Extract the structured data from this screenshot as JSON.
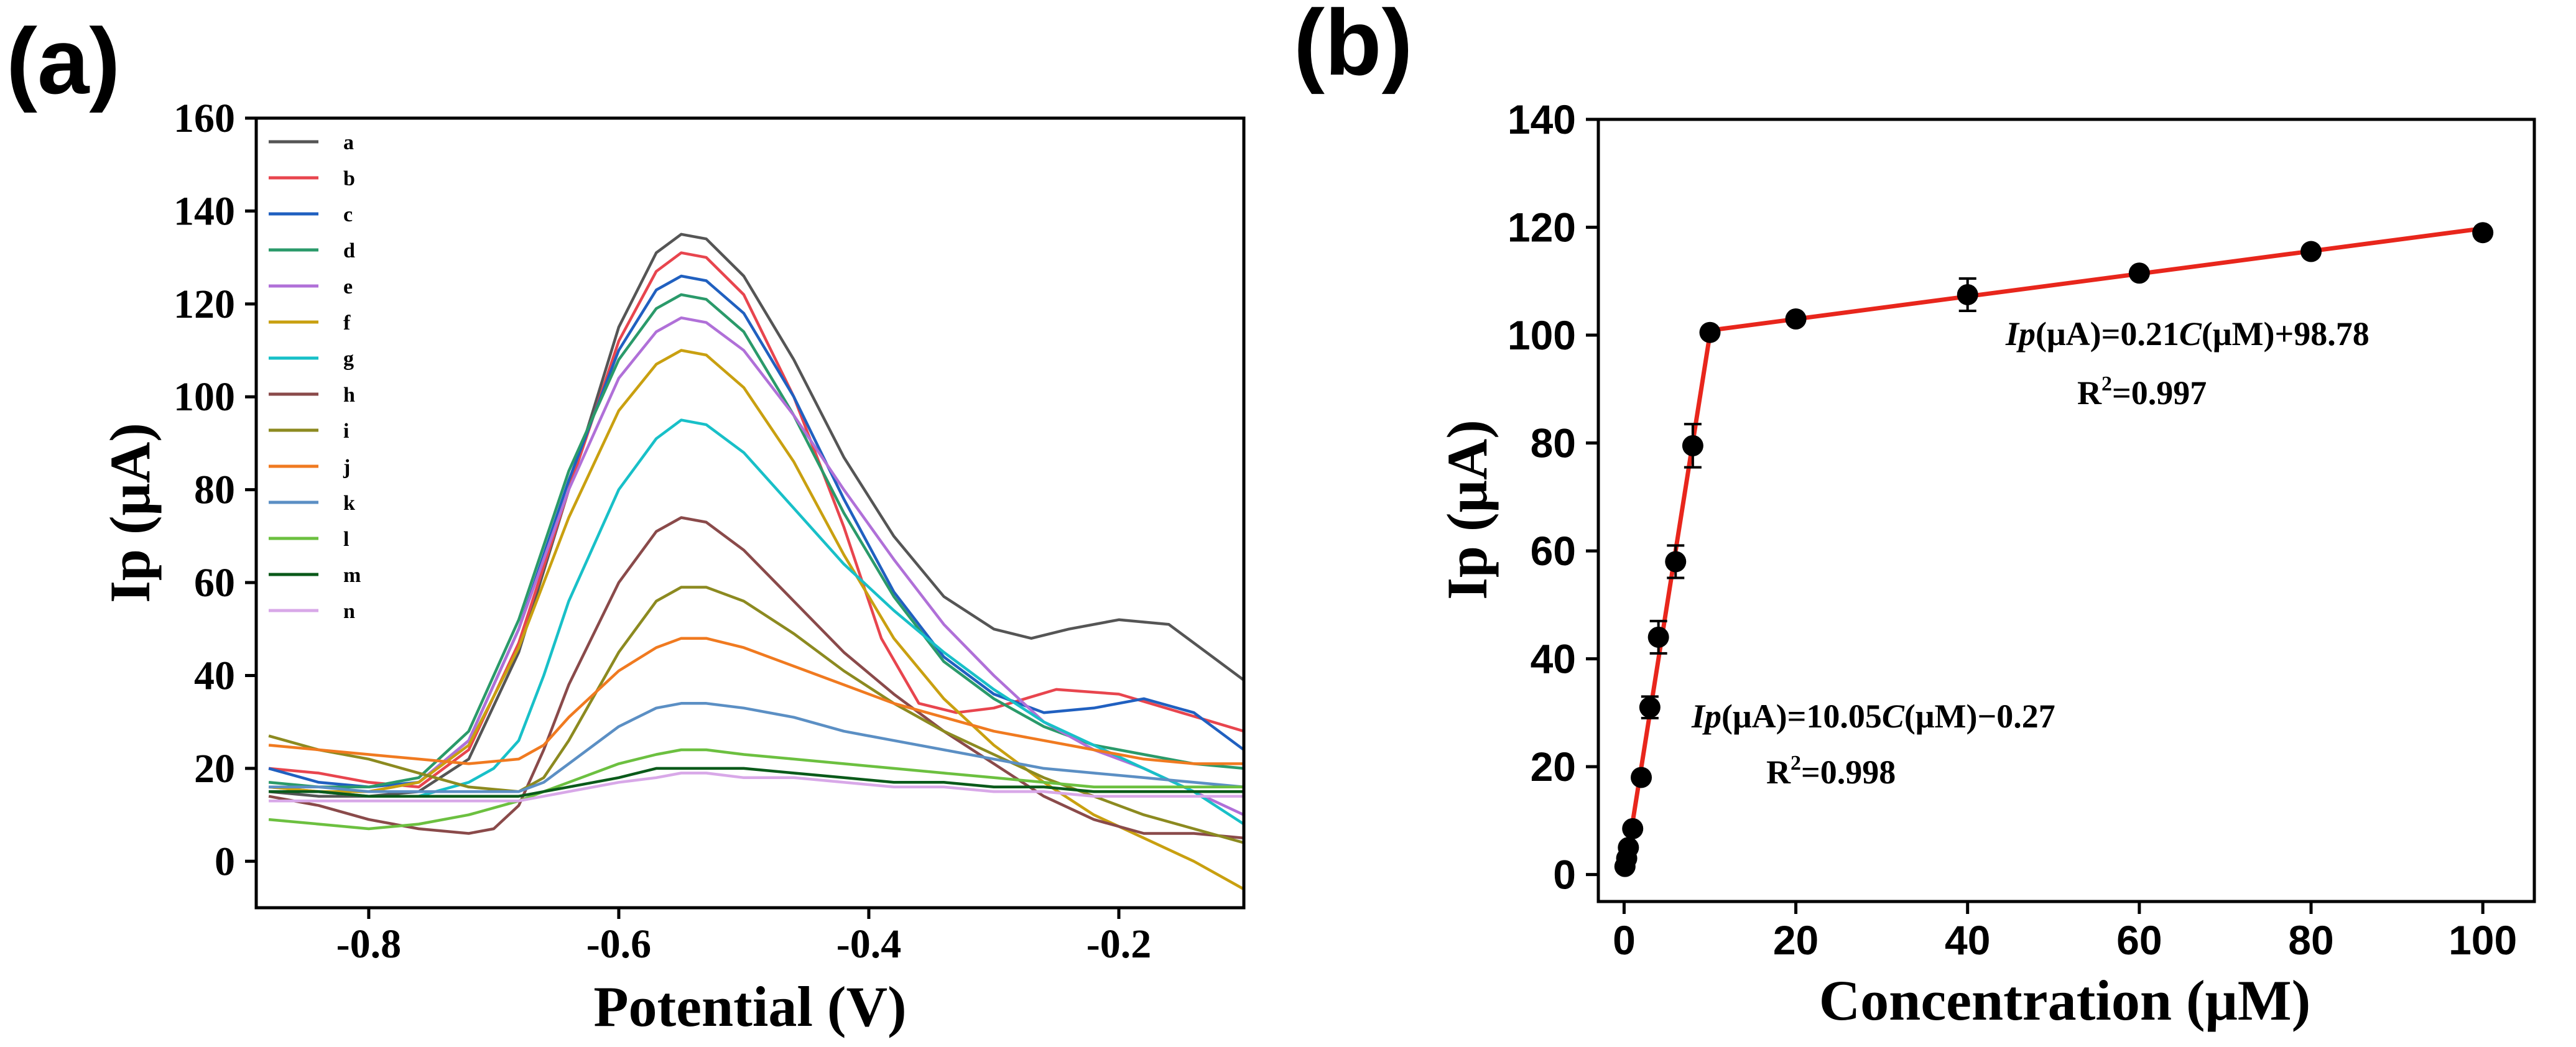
{
  "chart_data": [
    {
      "panel_label": "(a)",
      "type": "line",
      "title": "",
      "xlabel": "Potential (V)",
      "ylabel": "Ip (μA)",
      "xlim": [
        -0.89,
        -0.1
      ],
      "ylim": [
        -10,
        160
      ],
      "xticks": [
        -0.8,
        -0.6,
        -0.4,
        -0.2
      ],
      "xtick_labels": [
        "-0.8",
        "-0.6",
        "-0.4",
        "-0.2"
      ],
      "yticks": [
        0,
        20,
        40,
        60,
        80,
        100,
        120,
        140,
        160
      ],
      "ytick_labels": [
        "0",
        "20",
        "40",
        "60",
        "80",
        "100",
        "120",
        "140",
        "160"
      ],
      "legend_position": "top-left",
      "series": [
        {
          "name": "a",
          "color": "#555555",
          "x": [
            -0.88,
            -0.84,
            -0.8,
            -0.76,
            -0.72,
            -0.68,
            -0.64,
            -0.6,
            -0.57,
            -0.55,
            -0.53,
            -0.5,
            -0.46,
            -0.42,
            -0.38,
            -0.34,
            -0.3,
            -0.27,
            -0.24,
            -0.2,
            -0.16,
            -0.13,
            -0.1
          ],
          "y": [
            15,
            14,
            14,
            15,
            22,
            45,
            80,
            115,
            131,
            135,
            134,
            126,
            108,
            87,
            70,
            57,
            50,
            48,
            50,
            52,
            51,
            45,
            39
          ]
        },
        {
          "name": "b",
          "color": "#e8454e",
          "x": [
            -0.88,
            -0.84,
            -0.8,
            -0.76,
            -0.72,
            -0.68,
            -0.64,
            -0.6,
            -0.57,
            -0.55,
            -0.53,
            -0.5,
            -0.46,
            -0.42,
            -0.39,
            -0.36,
            -0.33,
            -0.3,
            -0.25,
            -0.2,
            -0.15,
            -0.1
          ],
          "y": [
            20,
            19,
            17,
            16,
            24,
            47,
            80,
            112,
            127,
            131,
            130,
            122,
            100,
            72,
            48,
            34,
            32,
            33,
            37,
            36,
            32,
            28
          ]
        },
        {
          "name": "c",
          "color": "#2060c0",
          "x": [
            -0.88,
            -0.84,
            -0.8,
            -0.76,
            -0.72,
            -0.68,
            -0.64,
            -0.6,
            -0.57,
            -0.55,
            -0.53,
            -0.5,
            -0.46,
            -0.42,
            -0.38,
            -0.34,
            -0.3,
            -0.26,
            -0.22,
            -0.18,
            -0.14,
            -0.1
          ],
          "y": [
            20,
            17,
            16,
            17,
            26,
            50,
            82,
            110,
            123,
            126,
            125,
            118,
            100,
            78,
            58,
            44,
            36,
            32,
            33,
            35,
            32,
            24
          ]
        },
        {
          "name": "d",
          "color": "#2a9a6a",
          "x": [
            -0.88,
            -0.84,
            -0.8,
            -0.76,
            -0.72,
            -0.68,
            -0.64,
            -0.6,
            -0.57,
            -0.55,
            -0.53,
            -0.5,
            -0.46,
            -0.42,
            -0.38,
            -0.34,
            -0.3,
            -0.26,
            -0.22,
            -0.18,
            -0.14,
            -0.1
          ],
          "y": [
            17,
            16,
            16,
            18,
            28,
            52,
            84,
            108,
            119,
            122,
            121,
            114,
            96,
            75,
            57,
            43,
            35,
            29,
            25,
            23,
            21,
            20
          ]
        },
        {
          "name": "e",
          "color": "#b070d8",
          "x": [
            -0.88,
            -0.84,
            -0.8,
            -0.76,
            -0.72,
            -0.68,
            -0.64,
            -0.6,
            -0.57,
            -0.55,
            -0.53,
            -0.5,
            -0.46,
            -0.42,
            -0.38,
            -0.34,
            -0.3,
            -0.26,
            -0.22,
            -0.18,
            -0.14,
            -0.1
          ],
          "y": [
            16,
            15,
            15,
            17,
            26,
            50,
            80,
            104,
            114,
            117,
            116,
            110,
            96,
            80,
            65,
            51,
            40,
            30,
            24,
            20,
            15,
            10
          ]
        },
        {
          "name": "f",
          "color": "#c9a010",
          "x": [
            -0.88,
            -0.84,
            -0.8,
            -0.76,
            -0.72,
            -0.68,
            -0.64,
            -0.6,
            -0.57,
            -0.55,
            -0.53,
            -0.5,
            -0.46,
            -0.42,
            -0.38,
            -0.34,
            -0.3,
            -0.26,
            -0.22,
            -0.18,
            -0.14,
            -0.1
          ],
          "y": [
            16,
            15,
            15,
            17,
            25,
            46,
            74,
            97,
            107,
            110,
            109,
            102,
            86,
            66,
            48,
            35,
            25,
            17,
            10,
            5,
            0,
            -6
          ]
        },
        {
          "name": "g",
          "color": "#18c0c8",
          "x": [
            -0.88,
            -0.84,
            -0.8,
            -0.76,
            -0.72,
            -0.7,
            -0.68,
            -0.66,
            -0.64,
            -0.6,
            -0.57,
            -0.55,
            -0.53,
            -0.5,
            -0.46,
            -0.42,
            -0.38,
            -0.34,
            -0.3,
            -0.26,
            -0.22,
            -0.18,
            -0.14,
            -0.1
          ],
          "y": [
            15,
            15,
            14,
            14,
            17,
            20,
            26,
            40,
            56,
            80,
            91,
            95,
            94,
            88,
            76,
            64,
            54,
            45,
            37,
            30,
            25,
            20,
            15,
            8
          ]
        },
        {
          "name": "h",
          "color": "#8a4a4a",
          "x": [
            -0.88,
            -0.84,
            -0.8,
            -0.76,
            -0.72,
            -0.7,
            -0.68,
            -0.66,
            -0.64,
            -0.6,
            -0.57,
            -0.55,
            -0.53,
            -0.5,
            -0.46,
            -0.42,
            -0.38,
            -0.34,
            -0.3,
            -0.26,
            -0.22,
            -0.18,
            -0.14,
            -0.1
          ],
          "y": [
            14,
            12,
            9,
            7,
            6,
            7,
            12,
            24,
            38,
            60,
            71,
            74,
            73,
            67,
            56,
            45,
            36,
            28,
            21,
            14,
            9,
            6,
            6,
            5
          ]
        },
        {
          "name": "i",
          "color": "#8c8a20",
          "x": [
            -0.88,
            -0.84,
            -0.8,
            -0.76,
            -0.72,
            -0.68,
            -0.66,
            -0.64,
            -0.6,
            -0.57,
            -0.55,
            -0.53,
            -0.5,
            -0.46,
            -0.42,
            -0.38,
            -0.34,
            -0.3,
            -0.26,
            -0.22,
            -0.18,
            -0.14,
            -0.1
          ],
          "y": [
            27,
            24,
            22,
            19,
            16,
            15,
            18,
            26,
            45,
            56,
            59,
            59,
            56,
            49,
            41,
            34,
            28,
            23,
            18,
            14,
            10,
            7,
            4
          ]
        },
        {
          "name": "j",
          "color": "#f07a20",
          "x": [
            -0.88,
            -0.84,
            -0.8,
            -0.76,
            -0.72,
            -0.68,
            -0.66,
            -0.64,
            -0.6,
            -0.57,
            -0.55,
            -0.53,
            -0.5,
            -0.46,
            -0.42,
            -0.38,
            -0.34,
            -0.3,
            -0.26,
            -0.22,
            -0.18,
            -0.14,
            -0.1
          ],
          "y": [
            25,
            24,
            23,
            22,
            21,
            22,
            25,
            31,
            41,
            46,
            48,
            48,
            46,
            42,
            38,
            34,
            31,
            28,
            26,
            24,
            22,
            21,
            21
          ]
        },
        {
          "name": "k",
          "color": "#5b8fc4",
          "x": [
            -0.88,
            -0.84,
            -0.8,
            -0.76,
            -0.72,
            -0.68,
            -0.66,
            -0.64,
            -0.6,
            -0.57,
            -0.55,
            -0.53,
            -0.5,
            -0.46,
            -0.42,
            -0.38,
            -0.34,
            -0.3,
            -0.26,
            -0.22,
            -0.18,
            -0.14,
            -0.1
          ],
          "y": [
            16,
            16,
            15,
            15,
            15,
            15,
            17,
            21,
            29,
            33,
            34,
            34,
            33,
            31,
            28,
            26,
            24,
            22,
            20,
            19,
            18,
            17,
            16
          ]
        },
        {
          "name": "l",
          "color": "#6cc040",
          "x": [
            -0.88,
            -0.84,
            -0.8,
            -0.76,
            -0.72,
            -0.68,
            -0.66,
            -0.64,
            -0.6,
            -0.57,
            -0.55,
            -0.53,
            -0.5,
            -0.46,
            -0.42,
            -0.38,
            -0.34,
            -0.3,
            -0.26,
            -0.22,
            -0.18,
            -0.14,
            -0.1
          ],
          "y": [
            9,
            8,
            7,
            8,
            10,
            13,
            15,
            17,
            21,
            23,
            24,
            24,
            23,
            22,
            21,
            20,
            19,
            18,
            17,
            16,
            16,
            16,
            16
          ]
        },
        {
          "name": "m",
          "color": "#0a5a1a",
          "x": [
            -0.88,
            -0.84,
            -0.8,
            -0.76,
            -0.72,
            -0.68,
            -0.66,
            -0.64,
            -0.6,
            -0.57,
            -0.55,
            -0.53,
            -0.5,
            -0.46,
            -0.42,
            -0.38,
            -0.34,
            -0.3,
            -0.26,
            -0.22,
            -0.18,
            -0.14,
            -0.1
          ],
          "y": [
            15,
            15,
            14,
            14,
            14,
            14,
            15,
            16,
            18,
            20,
            20,
            20,
            20,
            19,
            18,
            17,
            17,
            16,
            16,
            15,
            15,
            15,
            15
          ]
        },
        {
          "name": "n",
          "color": "#d8a8e8",
          "x": [
            -0.88,
            -0.84,
            -0.8,
            -0.76,
            -0.72,
            -0.68,
            -0.66,
            -0.64,
            -0.6,
            -0.57,
            -0.55,
            -0.53,
            -0.5,
            -0.46,
            -0.42,
            -0.38,
            -0.34,
            -0.3,
            -0.26,
            -0.22,
            -0.18,
            -0.14,
            -0.1
          ],
          "y": [
            13,
            13,
            13,
            13,
            13,
            13,
            14,
            15,
            17,
            18,
            19,
            19,
            18,
            18,
            17,
            16,
            16,
            15,
            15,
            14,
            14,
            14,
            14
          ]
        }
      ]
    },
    {
      "panel_label": "(b)",
      "type": "scatter",
      "title": "",
      "xlabel": "Concentration (μM)",
      "ylabel": "Ip (μA)",
      "xlim": [
        -3,
        106
      ],
      "ylim": [
        -5,
        140
      ],
      "xticks": [
        0,
        20,
        40,
        60,
        80,
        100
      ],
      "xtick_labels": [
        "0",
        "20",
        "40",
        "60",
        "80",
        "100"
      ],
      "yticks": [
        0,
        20,
        40,
        60,
        80,
        100,
        120,
        140
      ],
      "ytick_labels": [
        "0",
        "20",
        "40",
        "60",
        "80",
        "100",
        "120",
        "140"
      ],
      "point_color": "#000000",
      "line_color": "#e8261c",
      "points": {
        "x": [
          0.1,
          0.3,
          0.5,
          1,
          2,
          3,
          4,
          6,
          8,
          10,
          20,
          40,
          60,
          80,
          100
        ],
        "y": [
          1.5,
          3,
          5,
          8.5,
          18,
          31,
          44,
          58,
          79.5,
          100.5,
          103,
          107.5,
          111.5,
          115.5,
          119
        ],
        "error": [
          0,
          0,
          0,
          0,
          0,
          2,
          3,
          3,
          4,
          0,
          0,
          3,
          0,
          0,
          0
        ]
      },
      "fit_lines": [
        {
          "x": [
            0,
            10
          ],
          "y": [
            -0.27,
            100.23
          ]
        },
        {
          "x": [
            10,
            100
          ],
          "y": [
            100.88,
            119.78
          ]
        }
      ],
      "equations": [
        {
          "ip": "Ip",
          "pre": "(μA)=10.05",
          "c": "C",
          "post": "(μM)−0.27",
          "r_base": "R",
          "r_sup": "2",
          "r_val": "=0.998"
        },
        {
          "ip": "Ip",
          "pre": "(μA)=0.21",
          "c": "C",
          "post": "(μM)+98.78",
          "r_base": "R",
          "r_sup": "2",
          "r_val": "=0.997"
        }
      ]
    }
  ]
}
